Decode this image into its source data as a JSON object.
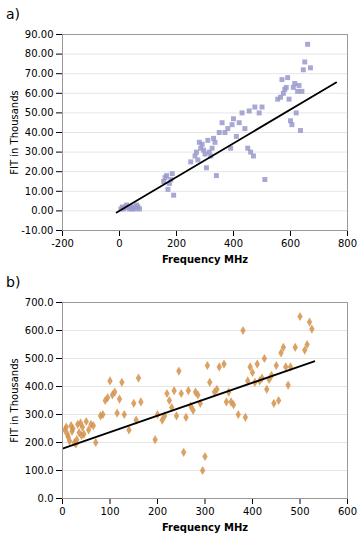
{
  "chart_data": [
    {
      "type": "scatter",
      "title": "a)",
      "xlabel": "Frequency MHz",
      "ylabel": "FIT in Thousands",
      "xlim": [
        -200,
        800
      ],
      "xticks": [
        -200,
        0,
        200,
        400,
        600,
        800
      ],
      "ylim": [
        -10,
        90
      ],
      "yticks": [
        {
          "value": -10,
          "label": "-10.00"
        },
        {
          "value": 0,
          "label": "0.00"
        },
        {
          "value": 10,
          "label": "10.00"
        },
        {
          "value": 20,
          "label": "20.00"
        },
        {
          "value": 30,
          "label": "30.00"
        },
        {
          "value": 40,
          "label": "40.00"
        },
        {
          "value": 50,
          "label": "50.00"
        },
        {
          "value": 60,
          "label": "60.00"
        },
        {
          "value": 70,
          "label": "70.00"
        },
        {
          "value": 80,
          "label": "80.00"
        },
        {
          "value": 90,
          "label": "90.00"
        }
      ],
      "grid": "y",
      "series": [
        {
          "type": "scatter",
          "color": "#9999cc",
          "marker": "square",
          "x": [
            5,
            10,
            15,
            20,
            25,
            30,
            35,
            40,
            45,
            50,
            55,
            60,
            65,
            70,
            155,
            160,
            165,
            170,
            175,
            180,
            185,
            190,
            250,
            265,
            270,
            275,
            280,
            285,
            290,
            295,
            300,
            305,
            310,
            315,
            320,
            325,
            330,
            335,
            340,
            350,
            360,
            370,
            380,
            390,
            395,
            400,
            410,
            420,
            430,
            440,
            450,
            455,
            460,
            470,
            475,
            490,
            500,
            510,
            555,
            565,
            570,
            575,
            580,
            585,
            590,
            595,
            600,
            605,
            610,
            615,
            620,
            625,
            630,
            635,
            640,
            645,
            650,
            660,
            670
          ],
          "values": [
            1,
            2,
            1,
            2,
            3,
            2,
            1,
            2,
            1,
            2,
            1,
            3,
            2,
            1,
            15,
            17,
            18,
            11,
            14,
            16,
            19,
            8,
            25,
            28,
            30,
            26,
            35,
            32,
            34,
            31,
            29,
            22,
            36,
            30,
            28,
            32,
            37,
            35,
            18,
            40,
            45,
            40,
            42,
            32,
            44,
            47,
            38,
            45,
            50,
            42,
            32,
            51,
            30,
            28,
            53,
            50,
            53,
            16,
            57,
            58,
            67,
            60,
            62,
            63,
            68,
            57,
            46,
            44,
            63,
            65,
            50,
            61,
            64,
            41,
            61,
            72,
            76,
            85,
            73
          ]
        },
        {
          "type": "line",
          "color": "#000000",
          "x": [
            -10,
            760
          ],
          "values": [
            -0.8,
            65.5
          ]
        }
      ]
    },
    {
      "type": "scatter",
      "title": "b)",
      "xlabel": "Frequency MHz",
      "ylabel": "FIT in Thousands",
      "xlim": [
        0,
        600
      ],
      "xticks": [
        0,
        100,
        200,
        300,
        400,
        500,
        600
      ],
      "ylim": [
        0,
        700
      ],
      "yticks": [
        {
          "value": 0,
          "label": "0.0"
        },
        {
          "value": 100,
          "label": "100.0"
        },
        {
          "value": 200,
          "label": "200.0"
        },
        {
          "value": 300,
          "label": "300.0"
        },
        {
          "value": 400,
          "label": "400.0"
        },
        {
          "value": 500,
          "label": "500.0"
        },
        {
          "value": 600,
          "label": "600.0"
        },
        {
          "value": 700,
          "label": "700.0"
        }
      ],
      "grid": "y",
      "series": [
        {
          "type": "scatter",
          "color": "#d4924a",
          "marker": "diamond",
          "x": [
            5,
            8,
            10,
            12,
            15,
            18,
            20,
            22,
            25,
            28,
            30,
            32,
            35,
            38,
            40,
            42,
            45,
            50,
            55,
            60,
            65,
            70,
            80,
            85,
            90,
            95,
            100,
            105,
            110,
            115,
            120,
            125,
            130,
            140,
            150,
            155,
            160,
            165,
            195,
            200,
            210,
            215,
            220,
            225,
            230,
            235,
            240,
            245,
            250,
            255,
            260,
            265,
            270,
            275,
            280,
            285,
            290,
            295,
            300,
            305,
            310,
            320,
            325,
            330,
            340,
            345,
            350,
            355,
            360,
            370,
            380,
            385,
            390,
            395,
            400,
            405,
            410,
            415,
            420,
            425,
            430,
            435,
            440,
            445,
            450,
            455,
            460,
            465,
            470,
            475,
            480,
            490,
            500,
            510,
            515,
            520,
            525
          ],
          "values": [
            245,
            255,
            230,
            220,
            205,
            260,
            240,
            250,
            200,
            195,
            210,
            265,
            235,
            270,
            225,
            255,
            230,
            275,
            245,
            265,
            260,
            200,
            295,
            300,
            350,
            360,
            420,
            370,
            380,
            305,
            355,
            415,
            300,
            245,
            340,
            280,
            430,
            345,
            210,
            300,
            280,
            295,
            375,
            350,
            325,
            385,
            295,
            455,
            375,
            165,
            290,
            385,
            330,
            315,
            380,
            370,
            340,
            100,
            150,
            475,
            415,
            380,
            390,
            470,
            480,
            345,
            380,
            345,
            335,
            300,
            600,
            290,
            420,
            470,
            450,
            415,
            480,
            420,
            430,
            500,
            390,
            425,
            440,
            340,
            475,
            350,
            520,
            540,
            470,
            405,
            470,
            540,
            650,
            530,
            550,
            630,
            605
          ]
        },
        {
          "type": "line",
          "color": "#000000",
          "x": [
            0,
            530
          ],
          "values": [
            178,
            490
          ]
        }
      ]
    }
  ]
}
